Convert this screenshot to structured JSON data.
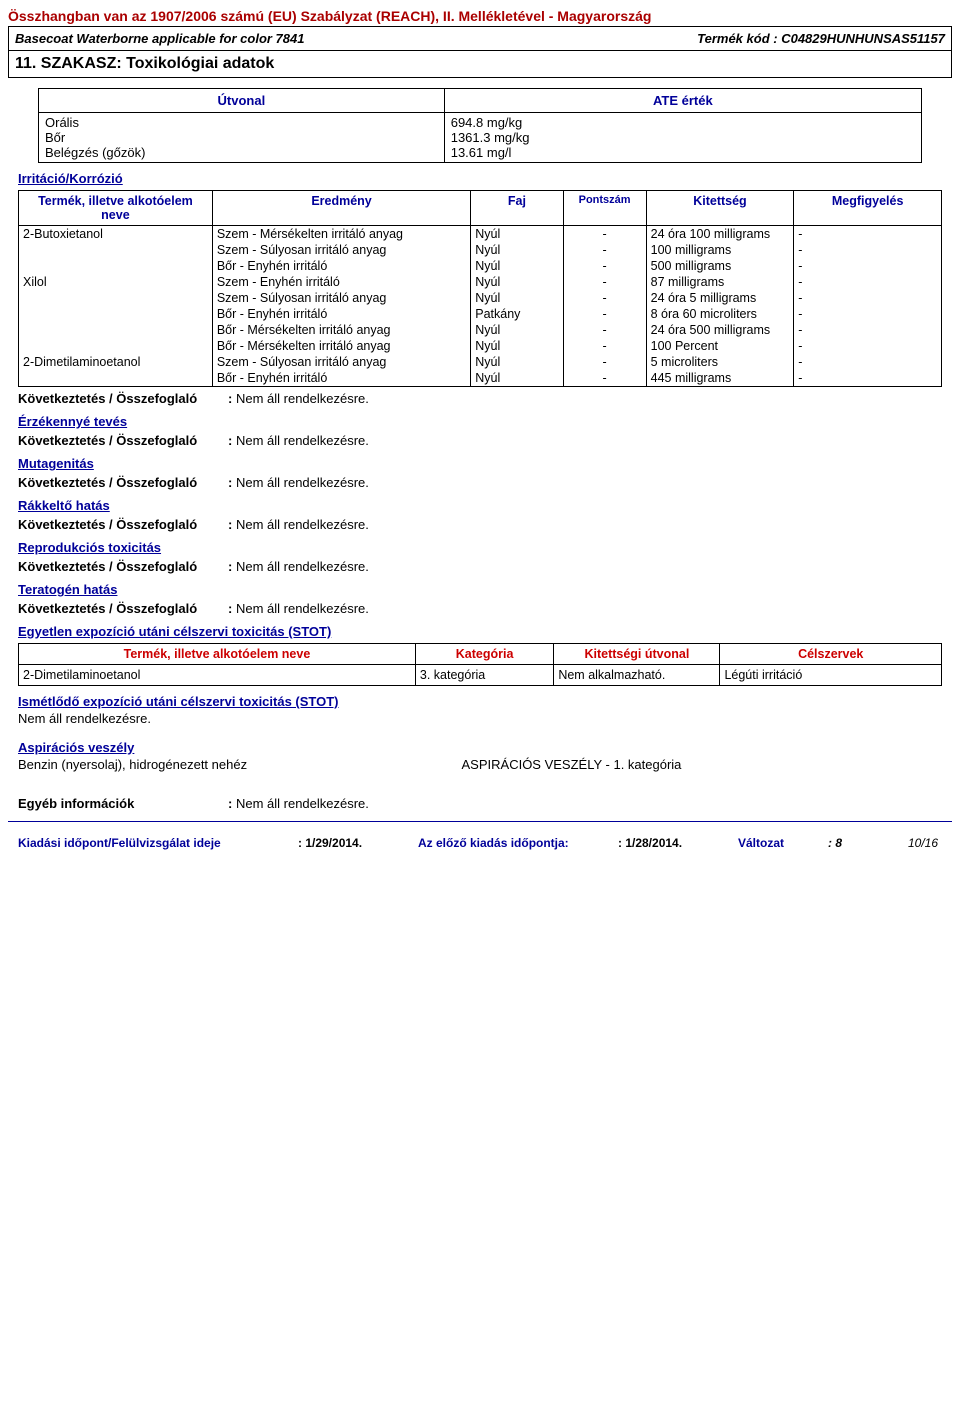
{
  "header": {
    "regulation_line": "Összhangban van az 1907/2006 számú (EU) Szabályzat (REACH), II. Mellékletével - Magyarország",
    "product_left": "Basecoat Waterborne applicable for color 7841",
    "product_right_label": "Termék kód :",
    "product_code": "C04829HUNHUNSAS51157"
  },
  "section": {
    "title": "11. SZAKASZ: Toxikológiai adatok"
  },
  "route": {
    "col_left_header": "Útvonal",
    "col_right_header": "ATE érték",
    "rows": [
      {
        "route": "Orális",
        "value": "694.8 mg/kg"
      },
      {
        "route": "Bőr",
        "value": "1361.3 mg/kg"
      },
      {
        "route": "Belégzés (gőzök)",
        "value": "13.61 mg/l"
      }
    ]
  },
  "irritation": {
    "title": "Irritáció/Korrózió",
    "headers": {
      "name": "Termék, illetve alkotóelem neve",
      "result": "Eredmény",
      "species": "Faj",
      "score": "Pontszám",
      "exposure": "Kitettség",
      "observation": "Megfigyelés"
    },
    "rows": [
      {
        "name": "2-Butoxietanol",
        "result": "Szem - Mérsékelten irritáló anyag",
        "species": "Nyúl",
        "score": "-",
        "exposure": "24 óra 100 milligrams",
        "obs": "-"
      },
      {
        "name": "",
        "result": "Szem - Súlyosan irritáló anyag",
        "species": "Nyúl",
        "score": "-",
        "exposure": "100 milligrams",
        "obs": "-"
      },
      {
        "name": "",
        "result": "Bőr - Enyhén irritáló",
        "species": "Nyúl",
        "score": "-",
        "exposure": "500 milligrams",
        "obs": "-"
      },
      {
        "name": "Xilol",
        "result": "Szem - Enyhén irritáló",
        "species": "Nyúl",
        "score": "-",
        "exposure": "87 milligrams",
        "obs": "-"
      },
      {
        "name": "",
        "result": "Szem - Súlyosan irritáló anyag",
        "species": "Nyúl",
        "score": "-",
        "exposure": "24 óra 5 milligrams",
        "obs": "-"
      },
      {
        "name": "",
        "result": "Bőr - Enyhén irritáló",
        "species": "Patkány",
        "score": "-",
        "exposure": "8 óra 60 microliters",
        "obs": "-"
      },
      {
        "name": "",
        "result": "Bőr - Mérsékelten irritáló anyag",
        "species": "Nyúl",
        "score": "-",
        "exposure": "24 óra 500 milligrams",
        "obs": "-"
      },
      {
        "name": "",
        "result": "Bőr - Mérsékelten irritáló anyag",
        "species": "Nyúl",
        "score": "-",
        "exposure": "100 Percent",
        "obs": "-"
      },
      {
        "name": "2-Dimetilaminoetanol",
        "result": "Szem - Súlyosan irritáló anyag",
        "species": "Nyúl",
        "score": "-",
        "exposure": "5 microliters",
        "obs": "-"
      },
      {
        "name": "",
        "result": "Bőr - Enyhén irritáló",
        "species": "Nyúl",
        "score": "-",
        "exposure": "445 milligrams",
        "obs": "-"
      }
    ]
  },
  "conclusions": {
    "label": "Következtetés / Összefoglaló",
    "value": "Nem áll rendelkezésre."
  },
  "sections_u": {
    "sensitization": "Érzékennyé tevés",
    "mutagenicity": "Mutagenitás",
    "carcinogenicity": "Rákkeltő hatás",
    "reprotox": "Reprodukciós toxicitás",
    "teratogen": "Teratogén hatás",
    "stot_single": "Egyetlen expozíció utáni célszervi toxicitás (STOT)",
    "stot_repeat": "Ismétlődő expozíció utáni célszervi toxicitás (STOT)",
    "aspiration": "Aspirációs veszély"
  },
  "stot": {
    "headers": {
      "name": "Termék, illetve alkotóelem neve",
      "category": "Kategória",
      "route": "Kitettségi útvonal",
      "target": "Célszervek"
    },
    "row": {
      "name": "2-Dimetilaminoetanol",
      "category": "3. kategória",
      "route": "Nem alkalmazható.",
      "target": "Légúti irritáció"
    }
  },
  "stot_repeat_value": "Nem áll rendelkezésre.",
  "aspiration": {
    "substance": "Benzin (nyersolaj), hidrogénezett nehéz",
    "value": "ASPIRÁCIÓS VESZÉLY - 1. kategória"
  },
  "other_info": {
    "label": "Egyéb információk",
    "value": "Nem áll rendelkezésre."
  },
  "footer": {
    "issue_label": "Kiadási időpont/Felülvizsgálat ideje",
    "issue_date": ": 1/29/2014.",
    "prev_label": "Az előző kiadás időpontja:",
    "prev_date": ": 1/28/2014.",
    "version_label": "Változat",
    "version": ": 8",
    "page": "10/16"
  }
}
